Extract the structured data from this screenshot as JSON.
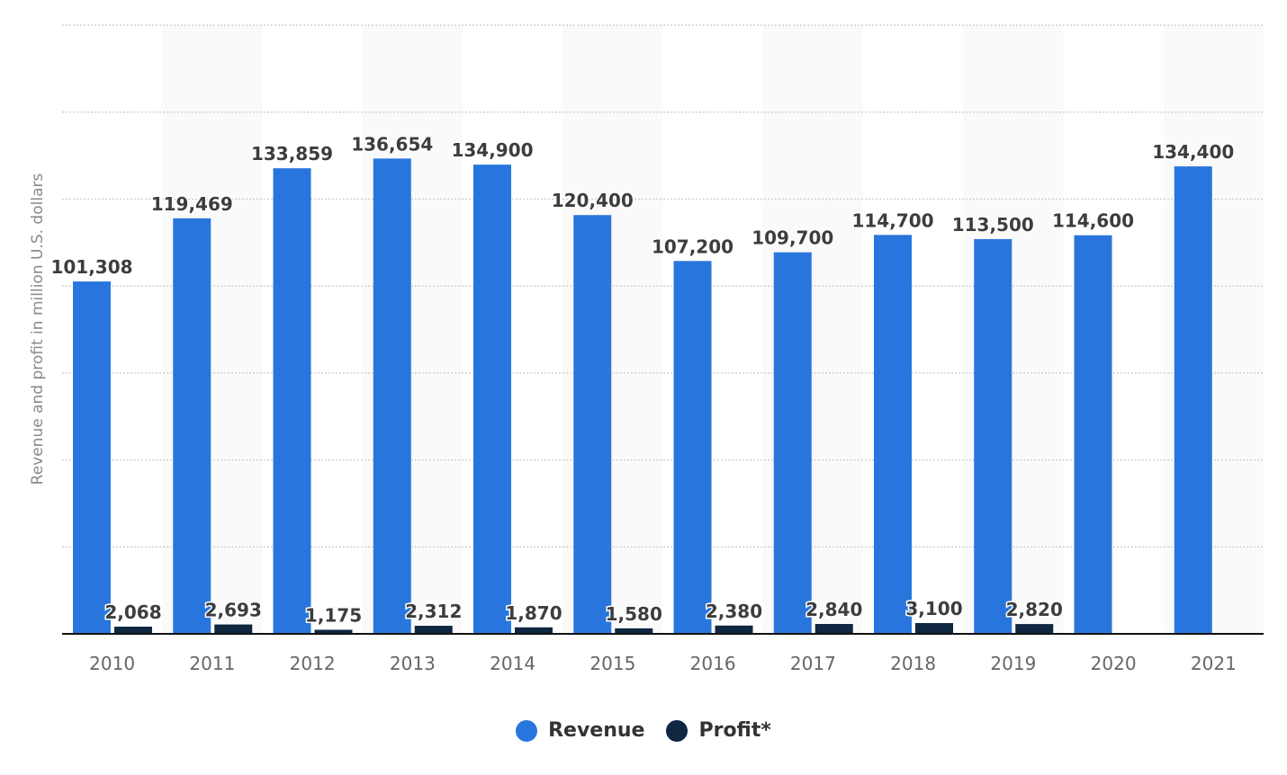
{
  "chart_data": {
    "type": "bar",
    "title": "",
    "xlabel": "",
    "ylabel": "Revenue and profit in million U.S. dollars",
    "ylim": [
      0,
      175000
    ],
    "grid": true,
    "y_tick_labels_shown": false,
    "legend_position": "bottom",
    "categories": [
      "2010",
      "2011",
      "2012",
      "2013",
      "2014",
      "2015",
      "2016",
      "2017",
      "2018",
      "2019",
      "2020",
      "2021"
    ],
    "series": [
      {
        "name": "Revenue",
        "color": "#2876dd",
        "values": [
          101308,
          119469,
          133859,
          136654,
          134900,
          120400,
          107200,
          109700,
          114700,
          113500,
          114600,
          134400
        ],
        "labels": [
          "101,308",
          "119,469",
          "133,859",
          "136,654",
          "134,900",
          "120,400",
          "107,200",
          "109,700",
          "114,700",
          "113,500",
          "114,600",
          "134,400"
        ]
      },
      {
        "name": "Profit*",
        "color": "#0f2741",
        "values": [
          2068,
          2693,
          1175,
          2312,
          1870,
          1580,
          2380,
          2840,
          3100,
          2820,
          null,
          null
        ],
        "labels": [
          "2,068",
          "2,693",
          "1,175",
          "2,312",
          "1,870",
          "1,580",
          "2,380",
          "2,840",
          "3,100",
          "2,820",
          null,
          null
        ]
      }
    ]
  }
}
